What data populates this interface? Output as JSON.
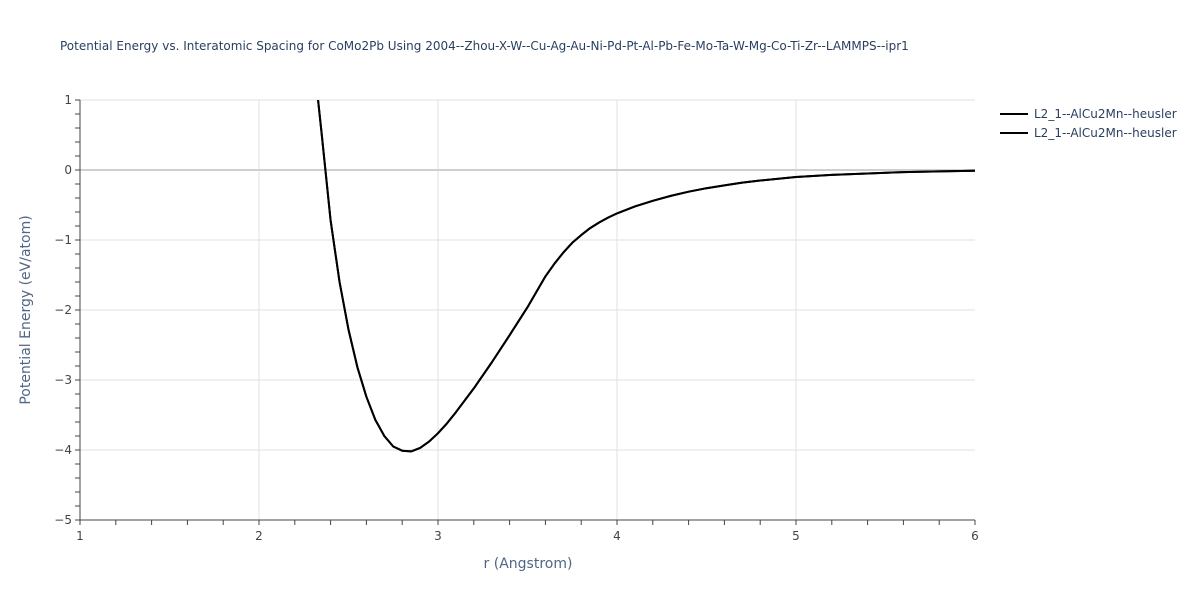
{
  "chart_data": {
    "type": "line",
    "title": "Potential Energy vs. Interatomic Spacing for CoMo2Pb Using 2004--Zhou-X-W--Cu-Ag-Au-Ni-Pd-Pt-Al-Pb-Fe-Mo-Ta-W-Mg-Co-Ti-Zr--LAMMPS--ipr1",
    "xlabel": "r (Angstrom)",
    "ylabel": "Potential Energy (eV/atom)",
    "xlim": [
      1,
      6
    ],
    "ylim": [
      -5,
      1
    ],
    "x_ticks": [
      "1",
      "2",
      "3",
      "4",
      "5",
      "6"
    ],
    "y_ticks": [
      "1",
      "0",
      "−1",
      "−2",
      "−3",
      "−4",
      "−5"
    ],
    "grid": true,
    "legend_position": "top-right",
    "series": [
      {
        "name": "L2_1--AlCu2Mn--heusler",
        "color": "#000000",
        "x": [
          2.33,
          2.35,
          2.4,
          2.45,
          2.5,
          2.55,
          2.6,
          2.65,
          2.7,
          2.75,
          2.8,
          2.85,
          2.9,
          2.95,
          3.0,
          3.05,
          3.1,
          3.2,
          3.3,
          3.4,
          3.5,
          3.6,
          3.65,
          3.7,
          3.75,
          3.8,
          3.85,
          3.9,
          3.95,
          4.0,
          4.1,
          4.2,
          4.3,
          4.4,
          4.5,
          4.6,
          4.7,
          4.8,
          5.0,
          5.2,
          5.4,
          5.6,
          5.8,
          6.0
        ],
        "y": [
          1.0,
          0.52,
          -0.72,
          -1.6,
          -2.28,
          -2.82,
          -3.24,
          -3.57,
          -3.8,
          -3.95,
          -4.01,
          -4.02,
          -3.97,
          -3.88,
          -3.76,
          -3.62,
          -3.46,
          -3.12,
          -2.75,
          -2.36,
          -1.96,
          -1.52,
          -1.34,
          -1.18,
          -1.04,
          -0.93,
          -0.83,
          -0.75,
          -0.68,
          -0.62,
          -0.52,
          -0.44,
          -0.37,
          -0.31,
          -0.26,
          -0.22,
          -0.18,
          -0.15,
          -0.1,
          -0.07,
          -0.05,
          -0.03,
          -0.02,
          -0.01
        ]
      },
      {
        "name": "L2_1--AlCu2Mn--heusler",
        "color": "#000000",
        "x": [
          2.33,
          2.35,
          2.4,
          2.45,
          2.5,
          2.55,
          2.6,
          2.65,
          2.7,
          2.75,
          2.8,
          2.85,
          2.9,
          2.95,
          3.0,
          3.05,
          3.1,
          3.2,
          3.3,
          3.4,
          3.5,
          3.6,
          3.65,
          3.7,
          3.75,
          3.8,
          3.85,
          3.9,
          3.95,
          4.0,
          4.1,
          4.2,
          4.3,
          4.4,
          4.5,
          4.6,
          4.7,
          4.8,
          5.0,
          5.2,
          5.4,
          5.6,
          5.8,
          6.0
        ],
        "y": [
          1.0,
          0.52,
          -0.72,
          -1.6,
          -2.28,
          -2.82,
          -3.24,
          -3.57,
          -3.8,
          -3.95,
          -4.01,
          -4.02,
          -3.97,
          -3.88,
          -3.76,
          -3.62,
          -3.46,
          -3.12,
          -2.75,
          -2.36,
          -1.96,
          -1.52,
          -1.34,
          -1.18,
          -1.04,
          -0.93,
          -0.83,
          -0.75,
          -0.68,
          -0.62,
          -0.52,
          -0.44,
          -0.37,
          -0.31,
          -0.26,
          -0.22,
          -0.18,
          -0.15,
          -0.1,
          -0.07,
          -0.05,
          -0.03,
          -0.02,
          -0.01
        ]
      }
    ]
  }
}
